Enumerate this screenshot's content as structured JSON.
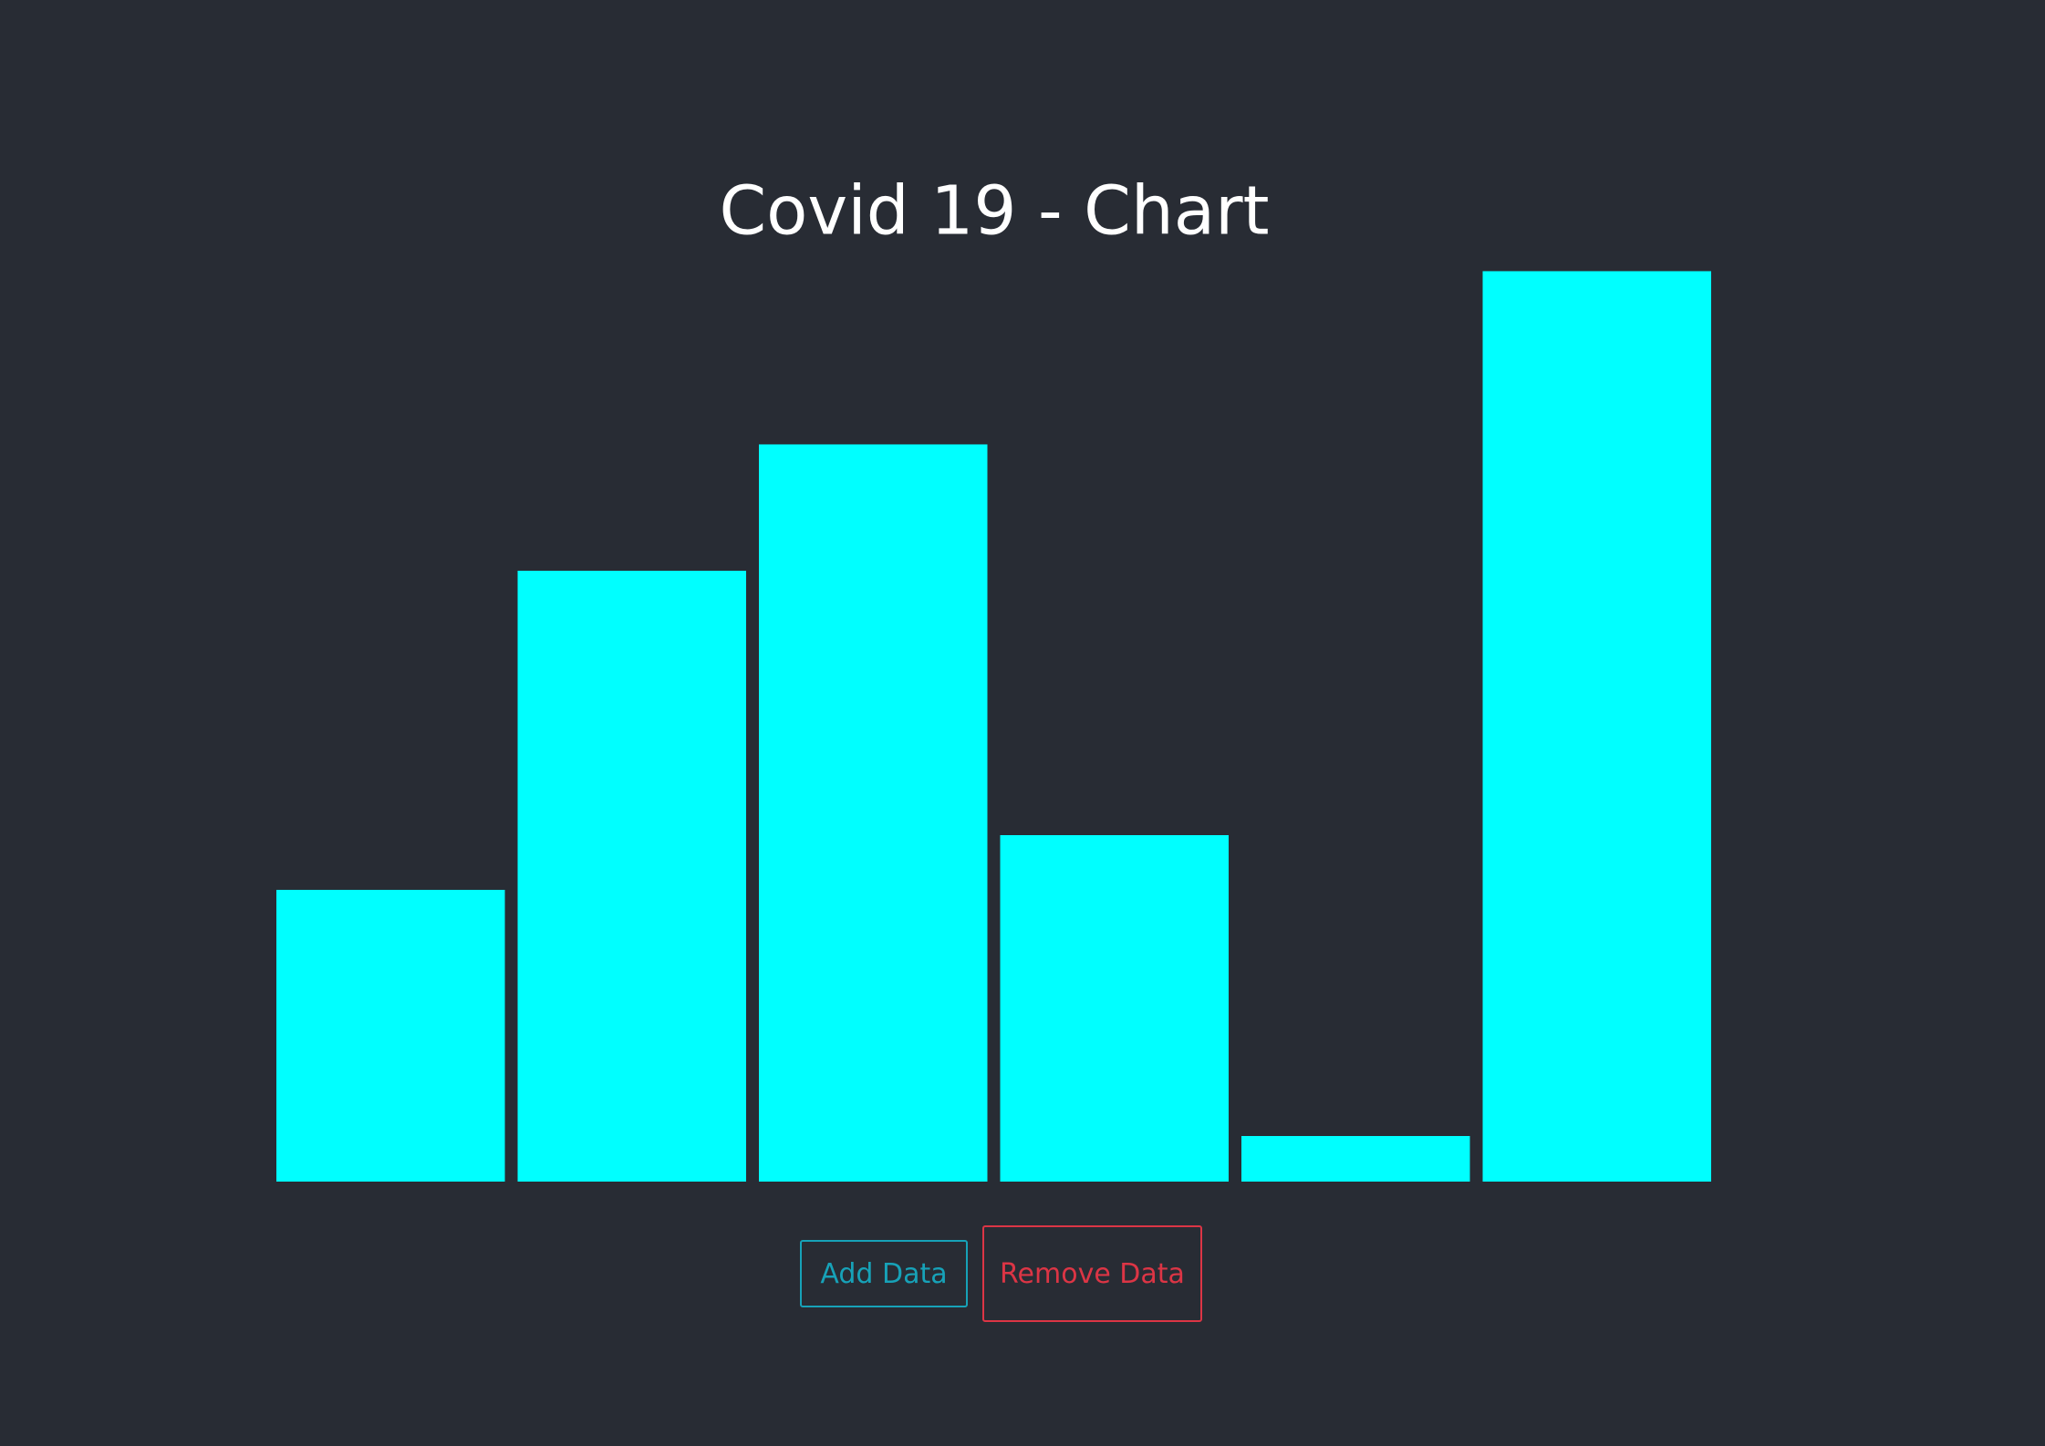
{
  "chart_data": {
    "type": "bar",
    "title": "Covid 19 - Chart",
    "values": [
      224,
      469,
      566,
      266,
      35,
      699
    ],
    "color": "#00ffff",
    "ylim": [
      0,
      700
    ],
    "grid": false
  },
  "buttons": [
    {
      "label": "Add Data",
      "color": "#17a2b8"
    },
    {
      "label": "Remove Data",
      "color": "#dc3545"
    }
  ]
}
